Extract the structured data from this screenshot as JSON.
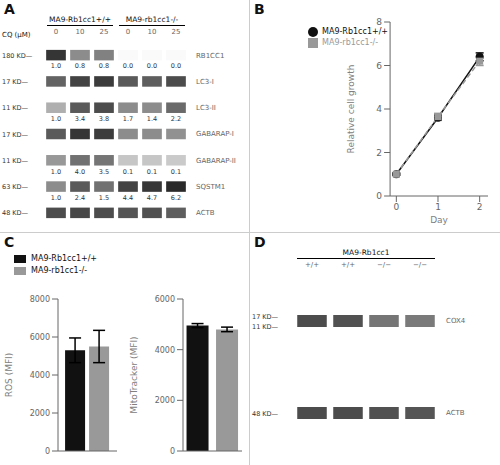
{
  "chart_data": [
    {
      "type": "heatmap",
      "title": "A",
      "x_label": "CQ (μM)",
      "groups": [
        "MA9-Rb1cc1+/+",
        "MA9-rb1cc1-/-"
      ],
      "categories": [
        "0",
        "10",
        "25",
        "0",
        "10",
        "25"
      ],
      "rows": [
        {
          "name": "RB1CC1",
          "size_labels": [
            "180 KD—"
          ],
          "values": [
            0.88,
            0.5,
            0.55,
            0.02,
            0.02,
            0.02
          ],
          "quantification": [
            "1.0",
            "0.8",
            "0.8",
            "0.0",
            "0.0",
            "0.0"
          ]
        },
        {
          "name": "LC3-I",
          "size_labels": [
            "17 KD—"
          ],
          "values": [
            0.68,
            0.82,
            0.85,
            0.72,
            0.7,
            0.78
          ]
        },
        {
          "name": "LC3-II",
          "size_labels": [
            "11 KD—"
          ],
          "values": [
            0.35,
            0.72,
            0.78,
            0.5,
            0.5,
            0.65
          ],
          "quantification": [
            "1.0",
            "3.4",
            "3.8",
            "1.7",
            "1.4",
            "2.2"
          ]
        },
        {
          "name": "GABARAP-I",
          "size_labels": [
            "17 KD—"
          ],
          "values": [
            0.72,
            0.88,
            0.85,
            0.5,
            0.5,
            0.48
          ]
        },
        {
          "name": "GABARAP-II",
          "size_labels": [
            "11 KD—"
          ],
          "values": [
            0.45,
            0.62,
            0.6,
            0.25,
            0.25,
            0.23
          ],
          "quantification": [
            "1.0",
            "4.0",
            "3.5",
            "0.1",
            "0.1",
            "0.1"
          ]
        },
        {
          "name": "SQSTM1",
          "size_labels": [
            "63 KD—"
          ],
          "values": [
            0.5,
            0.72,
            0.62,
            0.82,
            0.87,
            0.93
          ],
          "quantification": [
            "1.0",
            "2.4",
            "1.5",
            "4.4",
            "4.7",
            "6.2"
          ]
        },
        {
          "name": "ACTB",
          "size_labels": [
            "48 KD—"
          ],
          "values": [
            0.78,
            0.8,
            0.78,
            0.74,
            0.76,
            0.7
          ]
        }
      ]
    },
    {
      "type": "line",
      "title": "B",
      "xlabel": "Day",
      "ylabel": "Relative cell growth",
      "x": [
        0,
        1,
        2
      ],
      "xlim": [
        -0.15,
        2.2
      ],
      "xticks": [
        0,
        1,
        2
      ],
      "ylim": [
        0,
        8
      ],
      "yticks": [
        0,
        2,
        4,
        6,
        8
      ],
      "legend": "upper left",
      "series": [
        {
          "name": "MA9-Rb1cc1+/+",
          "color": "#111111",
          "marker": "circle",
          "line_style": "solid",
          "values": [
            1.0,
            3.6,
            6.4
          ],
          "errors": [
            0.05,
            0.12,
            0.18
          ]
        },
        {
          "name": "MA9-rb1cc1-/-",
          "color": "#999999",
          "marker": "square",
          "line_style": "dashed",
          "values": [
            1.0,
            3.65,
            6.2
          ],
          "errors": [
            0.05,
            0.15,
            0.2
          ]
        }
      ]
    },
    {
      "type": "bar",
      "title": "C",
      "ylabel": "ROS (MFI)",
      "categories": [
        null
      ],
      "ylim": [
        0,
        8000
      ],
      "yticks": [
        0,
        2000,
        4000,
        6000,
        8000
      ],
      "tick_labels": "y",
      "legend": "upper left",
      "series": [
        {
          "name": "MA9-Rb1cc1+/+",
          "color": "#111111",
          "values": [
            5300
          ],
          "errors": [
            650
          ]
        },
        {
          "name": "MA9-rb1cc1-/-",
          "color": "#999999",
          "values": [
            5500
          ],
          "errors": [
            850
          ]
        }
      ]
    },
    {
      "type": "bar",
      "ylabel": "MitoTracker (MFI)",
      "categories": [
        null,
        null
      ],
      "values": [
        4950,
        4800
      ],
      "errors": [
        80,
        90
      ],
      "colors": [
        "#111111",
        "#999999"
      ],
      "ylim": [
        0,
        6000
      ],
      "yticks": [
        0,
        2000,
        4000,
        6000
      ],
      "tick_labels": "y"
    },
    {
      "type": "heatmap",
      "title": "D",
      "groups": [
        "MA9-Rb1cc1"
      ],
      "categories": [
        "+/+",
        "+/+",
        "−/−",
        "−/−"
      ],
      "rows": [
        {
          "name": "COX4",
          "size_labels": [
            "17 KD—",
            "11 KD—"
          ],
          "values": [
            0.78,
            0.76,
            0.6,
            0.58
          ]
        },
        {
          "name": "ACTB",
          "size_labels": [
            "48 KD—"
          ],
          "values": [
            0.78,
            0.78,
            0.76,
            0.74
          ]
        }
      ]
    }
  ]
}
